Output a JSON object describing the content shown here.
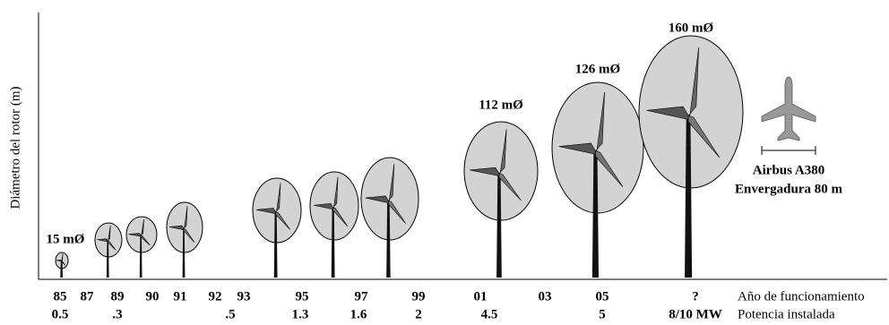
{
  "y_axis_label": "Diámetro del rotor (m)",
  "rotor_labels": [
    "15 mØ",
    "112 mØ",
    "126 mØ",
    "160 mØ"
  ],
  "years": [
    "85",
    "87",
    "89",
    "90",
    "91",
    "92",
    "93",
    "95",
    "97",
    "99",
    "01",
    "03",
    "05",
    "?"
  ],
  "powers": [
    "0.5",
    ".3",
    ".5",
    "1.3",
    "1.6",
    "2",
    "4.5",
    "5",
    "8/10 MW"
  ],
  "row_labels": {
    "year": "Año de funcionamiento",
    "power": "Potencia instalada"
  },
  "airbus": {
    "name": "Airbus A380",
    "span": "Envergadura 80 m"
  }
}
